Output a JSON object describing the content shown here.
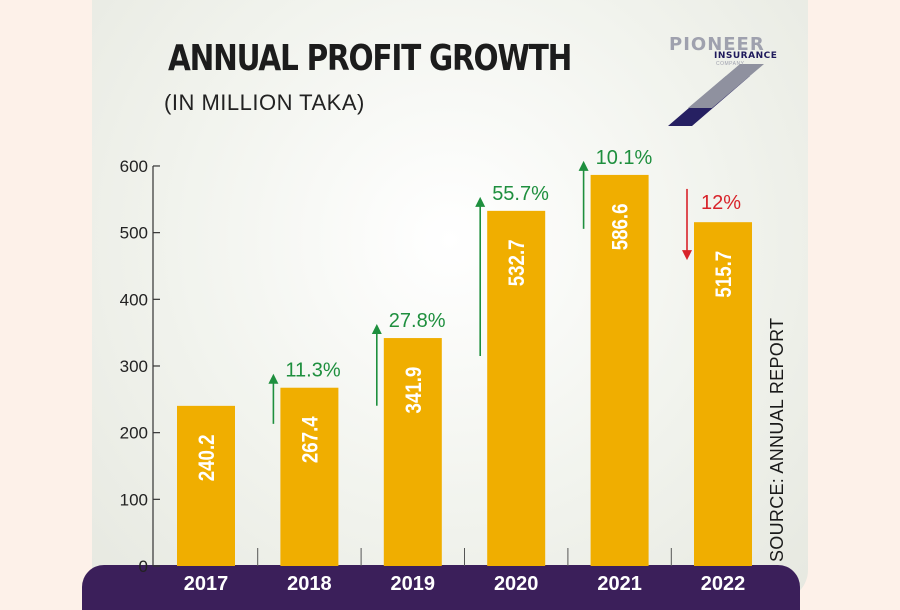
{
  "chart_data": {
    "type": "bar",
    "title": "ANNUAL PROFIT GROWTH",
    "subtitle": "(IN MILLION TAKA)",
    "categories": [
      "2017",
      "2018",
      "2019",
      "2020",
      "2021",
      "2022"
    ],
    "values": [
      240.2,
      267.4,
      341.9,
      532.7,
      586.6,
      515.7
    ],
    "value_labels": [
      "240.2",
      "267.4",
      "341.9",
      "532.7",
      "586.6",
      "515.7"
    ],
    "growth": [
      null,
      {
        "label": "11.3%",
        "direction": "up"
      },
      {
        "label": "27.8%",
        "direction": "up"
      },
      {
        "label": "55.7%",
        "direction": "up"
      },
      {
        "label": "10.1%",
        "direction": "up"
      },
      {
        "label": "12%",
        "direction": "down"
      }
    ],
    "yticks": [
      0,
      100,
      200,
      300,
      400,
      500,
      600
    ],
    "ylim": [
      0,
      600
    ],
    "xlabel": "",
    "ylabel": "",
    "source": "SOURCE: ANNUAL REPORT"
  },
  "logo": {
    "name": "PIONEER",
    "line2": "INSURANCE",
    "line3": "COMPANY"
  },
  "colors": {
    "bar": "#f0ae00",
    "up": "#1e8f3e",
    "down": "#d8232a",
    "axis_band": "#3b1f5a"
  }
}
